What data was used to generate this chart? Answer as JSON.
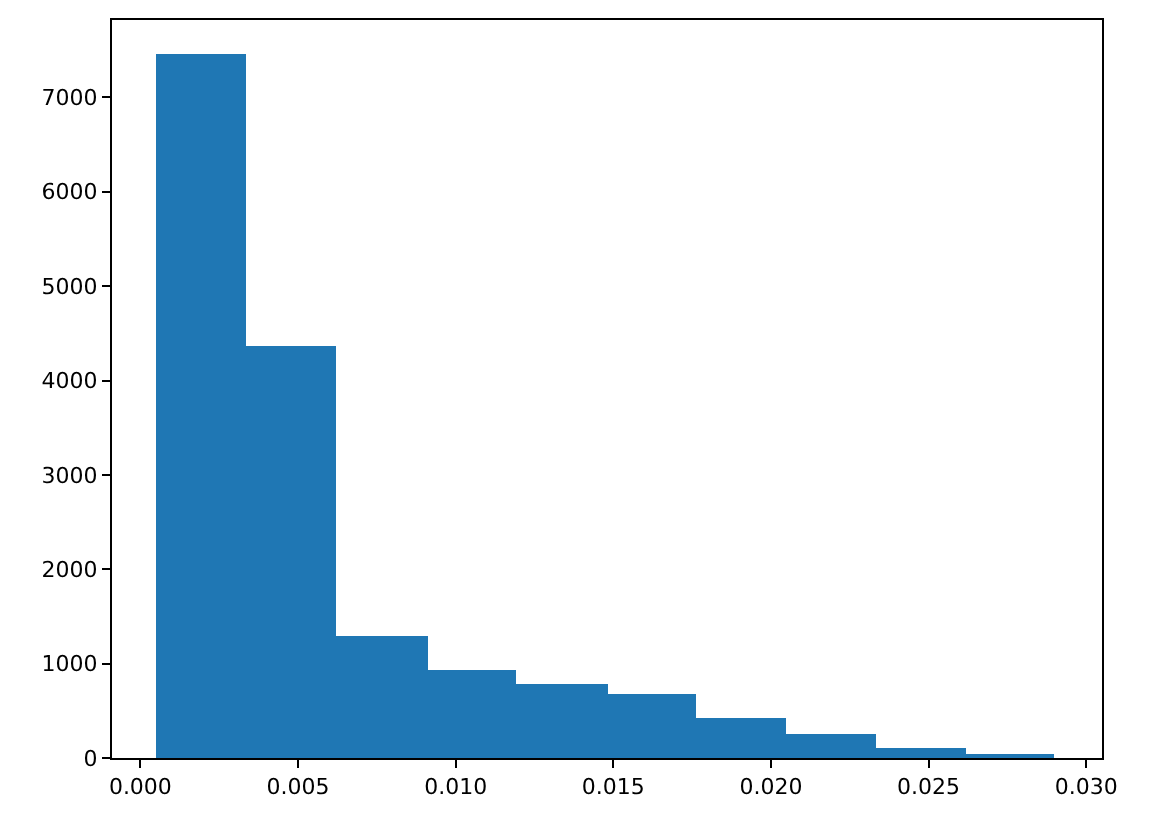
{
  "chart_data": {
    "type": "histogram",
    "bins": [
      0.0005,
      0.00335,
      0.0062,
      0.0091,
      0.0119,
      0.0148,
      0.0176,
      0.0205,
      0.0233,
      0.0262,
      0.029
    ],
    "values": [
      7470,
      4370,
      1300,
      940,
      790,
      680,
      430,
      260,
      110,
      50
    ],
    "color": "#1f77b4",
    "xlim": [
      -0.0009,
      0.0305
    ],
    "xticks": [
      {
        "value": 0,
        "label": "0.000"
      },
      {
        "value": 0.005,
        "label": "0.005"
      },
      {
        "value": 0.01,
        "label": "0.010"
      },
      {
        "value": 0.015,
        "label": "0.015"
      },
      {
        "value": 0.02,
        "label": "0.020"
      },
      {
        "value": 0.025,
        "label": "0.025"
      },
      {
        "value": 0.03,
        "label": "0.030"
      }
    ],
    "ylim": [
      0,
      7820
    ],
    "yticks": [
      0,
      1000,
      2000,
      3000,
      4000,
      5000,
      6000,
      7000
    ]
  }
}
